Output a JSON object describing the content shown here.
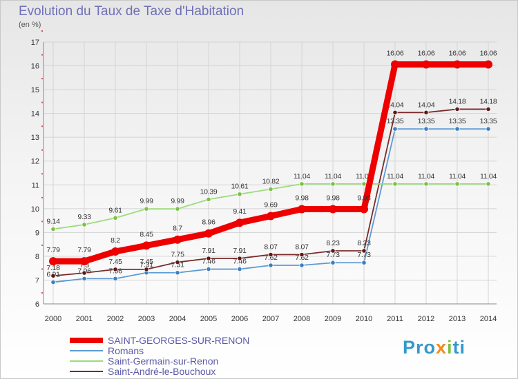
{
  "title": "Evolution du Taux de Taxe d'Habitation",
  "subtitle": "(en %)",
  "brand": {
    "parts": [
      "Pro",
      "x",
      "i",
      "ti"
    ],
    "colors": [
      "#3399cc",
      "#f28a1e",
      "#7cc142",
      "#3399cc"
    ]
  },
  "chart_data": {
    "type": "line",
    "x": [
      "2000",
      "2001",
      "2002",
      "2003",
      "2004",
      "2005",
      "2006",
      "2007",
      "2008",
      "2009",
      "2010",
      "2011",
      "2012",
      "2013",
      "2014"
    ],
    "yticks": [
      6,
      7,
      8,
      9,
      10,
      11,
      12,
      13,
      14,
      15,
      16,
      17
    ],
    "ylim": [
      6,
      17
    ],
    "grid": true,
    "legend_position": "bottom-left",
    "series": [
      {
        "name": "Romans",
        "color": "#5b9bd5",
        "marker": "#3d7fbf",
        "values": [
          6.91,
          7.06,
          7.06,
          7.31,
          7.31,
          7.46,
          7.46,
          7.62,
          7.62,
          7.73,
          7.73,
          13.35,
          13.35,
          13.35,
          13.35
        ],
        "labels": [
          "6.91",
          "7.06",
          "7.06",
          "7.31",
          "7.31",
          "7.46",
          "7.46",
          "7.62",
          "7.62",
          "7.73",
          "7.73",
          "13.35",
          "13.35",
          "13.35",
          "13.35"
        ]
      },
      {
        "name": "Saint-André-le-Bouchoux",
        "color": "#7a2a2a",
        "marker": "#5a1a1a",
        "values": [
          7.18,
          7.3,
          7.45,
          7.45,
          7.75,
          7.91,
          7.91,
          8.07,
          8.07,
          8.23,
          8.23,
          14.04,
          14.04,
          14.18,
          14.18
        ],
        "labels": [
          "7.18",
          "7.3",
          "7.45",
          "7.45",
          "7.75",
          "7.91",
          "7.91",
          "8.07",
          "8.07",
          "8.23",
          "8.23",
          "14.04",
          "14.04",
          "14.18",
          "14.18"
        ]
      },
      {
        "name": "Saint-Germain-sur-Renon",
        "color": "#99dd77",
        "marker": "#7cc142",
        "values": [
          9.14,
          9.33,
          9.61,
          9.99,
          9.99,
          10.39,
          10.61,
          10.82,
          11.04,
          11.04,
          11.04,
          11.04,
          11.04,
          11.04,
          11.04
        ],
        "labels": [
          "9.14",
          "9.33",
          "9.61",
          "9.99",
          "9.99",
          "10.39",
          "10.61",
          "10.82",
          "11.04",
          "11.04",
          "11.04",
          "11.04",
          "11.04",
          "11.04",
          "11.04"
        ]
      },
      {
        "name": "SAINT-GEORGES-SUR-RENON",
        "color": "#ee0000",
        "marker": "#ee0000",
        "values": [
          7.79,
          7.79,
          8.2,
          8.45,
          8.7,
          8.96,
          9.41,
          9.69,
          9.98,
          9.98,
          9.98,
          16.06,
          16.06,
          16.06,
          16.06
        ],
        "labels": [
          "7.79",
          "7.79",
          "8.2",
          "8.45",
          "8.7",
          "8.96",
          "9.41",
          "9.69",
          "9.98",
          "9.98",
          "9.98",
          "16.06",
          "16.06",
          "16.06",
          "16.06"
        ]
      }
    ],
    "legend": [
      {
        "name": "SAINT-GEORGES-SUR-RENON",
        "color": "#ee0000",
        "weight": "thick"
      },
      {
        "name": "Romans",
        "color": "#5b9bd5",
        "weight": "thin"
      },
      {
        "name": "Saint-Germain-sur-Renon",
        "color": "#99dd77",
        "weight": "thin"
      },
      {
        "name": "Saint-André-le-Bouchoux",
        "color": "#7a2a2a",
        "weight": "thin"
      }
    ]
  }
}
